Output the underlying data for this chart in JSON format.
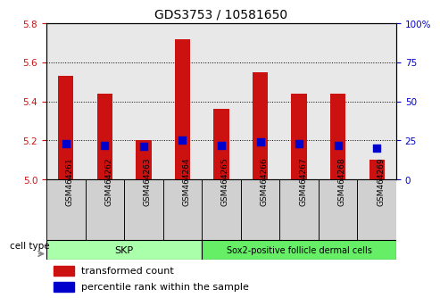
{
  "title": "GDS3753 / 10581650",
  "samples": [
    "GSM464261",
    "GSM464262",
    "GSM464263",
    "GSM464264",
    "GSM464265",
    "GSM464266",
    "GSM464267",
    "GSM464268",
    "GSM464269"
  ],
  "transformed_counts": [
    5.53,
    5.44,
    5.2,
    5.72,
    5.36,
    5.55,
    5.44,
    5.44,
    5.1
  ],
  "percentile_ranks": [
    23,
    22,
    21,
    25,
    22,
    24,
    23,
    22,
    20
  ],
  "ylim_left": [
    5.0,
    5.8
  ],
  "ylim_right": [
    0,
    100
  ],
  "yticks_left": [
    5.0,
    5.2,
    5.4,
    5.6,
    5.8
  ],
  "yticks_right": [
    0,
    25,
    50,
    75,
    100
  ],
  "bar_color": "#cc1111",
  "dot_color": "#0000cc",
  "skp_color": "#aaffaa",
  "sox2_color": "#66ee66",
  "skp_label": "SKP",
  "sox2_label": "Sox2-positive follicle dermal cells",
  "skp_count": 4,
  "sox2_count": 5,
  "legend_bar_label": "transformed count",
  "legend_dot_label": "percentile rank within the sample",
  "cell_type_label": "cell type",
  "bar_width": 0.4,
  "dot_size": 30,
  "bg_color": "#e8e8e8",
  "grid_color": "#000000",
  "base_value": 5.0,
  "title_fontsize": 10,
  "tick_fontsize": 7.5,
  "label_fontsize": 8
}
